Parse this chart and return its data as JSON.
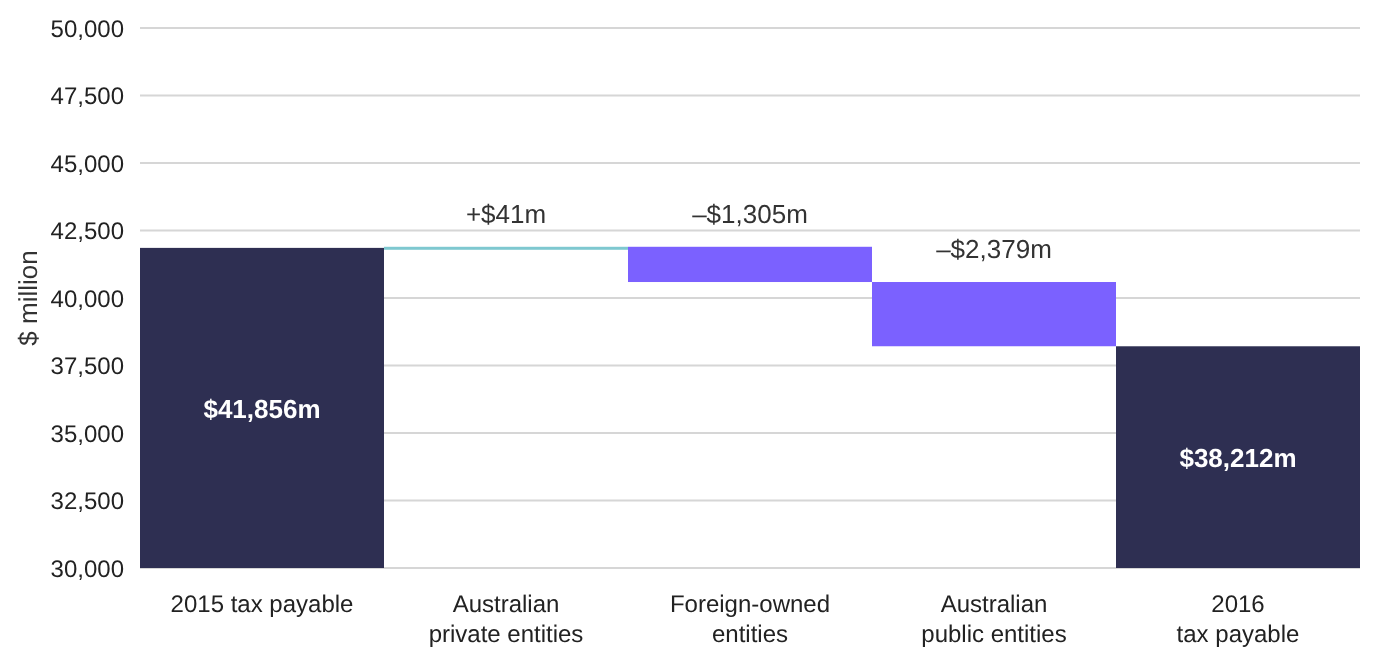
{
  "chart_data": {
    "type": "bar",
    "ylabel": "$ million",
    "categories": [
      "2015 tax payable",
      "Australian\nprivate entities",
      "Foreign-owned\nentities",
      "Australian\npublic entities",
      "2016\ntax payable"
    ],
    "values": [
      41856,
      41,
      -1305,
      -2379,
      38212
    ],
    "base": [
      null,
      41856,
      41897,
      40592,
      null
    ],
    "colors": [
      "#2e2f52",
      "#7ec8d0",
      "#7b61ff",
      "#7b61ff",
      "#2e2f52"
    ],
    "value_labels": [
      "$41,856m",
      "+$41m",
      "–$1,305m",
      "–$2,379m",
      "$38,212m"
    ],
    "ylim": [
      30000,
      50000
    ],
    "yticks": [
      {
        "value": 30000,
        "label": "30,000"
      },
      {
        "value": 32500,
        "label": "32,500"
      },
      {
        "value": 35000,
        "label": "35,000"
      },
      {
        "value": 37500,
        "label": "37,500"
      },
      {
        "value": 40000,
        "label": "40,000"
      },
      {
        "value": 42500,
        "label": "42,500"
      },
      {
        "value": 45000,
        "label": "45,000"
      },
      {
        "value": 47500,
        "label": "47,500"
      },
      {
        "value": 50000,
        "label": "50,000"
      }
    ],
    "grid": "y"
  }
}
